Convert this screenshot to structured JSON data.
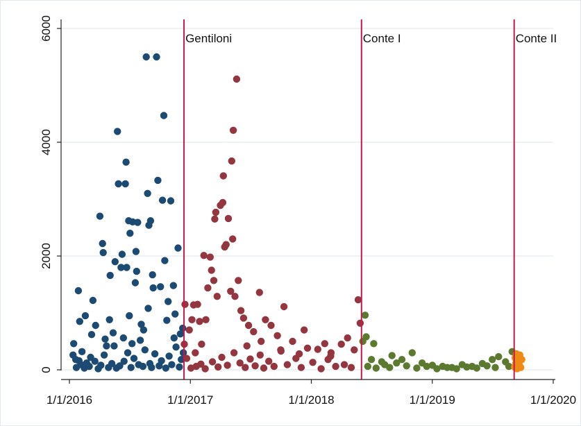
{
  "chart_data": {
    "type": "scatter",
    "title": "",
    "xlabel": "",
    "ylabel": "",
    "xlim": [
      "2016-01-01",
      "2020-01-01"
    ],
    "ylim": [
      0,
      6000
    ],
    "x_ticks": [
      "1/1/2016",
      "1/1/2017",
      "1/1/2018",
      "1/1/2019",
      "1/1/2020"
    ],
    "y_ticks": [
      "0",
      "2000",
      "4000",
      "6000"
    ],
    "y_tick_values": [
      0,
      2000,
      4000,
      6000
    ],
    "grid": "horizontal",
    "colors": {
      "renzi": "#1d4a73",
      "gentiloni": "#93363f",
      "conte1": "#5b7a2f",
      "conte2": "#ef8a12",
      "vline": "#c8174a",
      "grid": "#e8eef2"
    },
    "annotations": [
      {
        "label": "Gentiloni",
        "date": "2016-12-12"
      },
      {
        "label": "Conte I",
        "date": "2018-06-01"
      },
      {
        "label": "Conte II",
        "date": "2019-09-05"
      }
    ],
    "series": [
      {
        "points": [
          [
            "2016-01-12",
            260
          ],
          [
            "2016-01-14",
            460
          ],
          [
            "2016-01-20",
            180
          ],
          [
            "2016-01-28",
            1390
          ],
          [
            "2016-02-01",
            850
          ],
          [
            "2016-02-08",
            320
          ],
          [
            "2016-02-18",
            950
          ],
          [
            "2016-02-22",
            120
          ],
          [
            "2016-03-05",
            220
          ],
          [
            "2016-03-12",
            1220
          ],
          [
            "2016-03-20",
            780
          ],
          [
            "2016-04-02",
            2700
          ],
          [
            "2016-04-10",
            2220
          ],
          [
            "2016-04-12",
            2060
          ],
          [
            "2016-04-22",
            420
          ],
          [
            "2016-05-03",
            1660
          ],
          [
            "2016-05-12",
            650
          ],
          [
            "2016-05-18",
            1900
          ],
          [
            "2016-05-25",
            4190
          ],
          [
            "2016-05-28",
            3270
          ],
          [
            "2016-06-05",
            1800
          ],
          [
            "2016-06-08",
            2030
          ],
          [
            "2016-06-12",
            560
          ],
          [
            "2016-06-18",
            3270
          ],
          [
            "2016-06-20",
            3650
          ],
          [
            "2016-06-22",
            1800
          ],
          [
            "2016-06-28",
            2620
          ],
          [
            "2016-07-02",
            2400
          ],
          [
            "2016-07-10",
            2600
          ],
          [
            "2016-07-18",
            1530
          ],
          [
            "2016-07-20",
            2080
          ],
          [
            "2016-07-22",
            1730
          ],
          [
            "2016-07-25",
            2590
          ],
          [
            "2016-08-05",
            800
          ],
          [
            "2016-08-20",
            5500
          ],
          [
            "2016-08-24",
            3100
          ],
          [
            "2016-08-26",
            1080
          ],
          [
            "2016-08-28",
            2540
          ],
          [
            "2016-09-02",
            2620
          ],
          [
            "2016-09-08",
            1670
          ],
          [
            "2016-09-10",
            1440
          ],
          [
            "2016-09-20",
            5500
          ],
          [
            "2016-09-24",
            3330
          ],
          [
            "2016-10-02",
            1460
          ],
          [
            "2016-10-08",
            2980
          ],
          [
            "2016-10-12",
            4470
          ],
          [
            "2016-10-15",
            1920
          ],
          [
            "2016-10-25",
            1200
          ],
          [
            "2016-11-02",
            2970
          ],
          [
            "2016-11-10",
            1480
          ],
          [
            "2016-11-15",
            980
          ],
          [
            "2016-11-24",
            2140
          ],
          [
            "2016-12-01",
            630
          ],
          [
            "2016-12-08",
            730
          ],
          [
            "2016-01-22",
            40
          ],
          [
            "2016-02-05",
            90
          ],
          [
            "2016-02-15",
            30
          ],
          [
            "2016-03-01",
            60
          ],
          [
            "2016-03-18",
            150
          ],
          [
            "2016-03-28",
            20
          ],
          [
            "2016-04-05",
            80
          ],
          [
            "2016-04-15",
            260
          ],
          [
            "2016-04-28",
            40
          ],
          [
            "2016-05-08",
            110
          ],
          [
            "2016-05-15",
            420
          ],
          [
            "2016-05-22",
            30
          ],
          [
            "2016-06-01",
            70
          ],
          [
            "2016-06-14",
            150
          ],
          [
            "2016-06-25",
            300
          ],
          [
            "2016-07-05",
            40
          ],
          [
            "2016-07-14",
            200
          ],
          [
            "2016-07-28",
            90
          ],
          [
            "2016-08-02",
            520
          ],
          [
            "2016-08-10",
            60
          ],
          [
            "2016-08-16",
            350
          ],
          [
            "2016-08-31",
            110
          ],
          [
            "2016-09-05",
            40
          ],
          [
            "2016-09-15",
            280
          ],
          [
            "2016-09-28",
            70
          ],
          [
            "2016-10-05",
            160
          ],
          [
            "2016-10-18",
            30
          ],
          [
            "2016-10-28",
            240
          ],
          [
            "2016-11-05",
            90
          ],
          [
            "2016-11-18",
            400
          ],
          [
            "2016-11-28",
            50
          ],
          [
            "2016-12-04",
            180
          ],
          [
            "2016-03-08",
            620
          ],
          [
            "2016-05-01",
            880
          ],
          [
            "2016-06-30",
            950
          ],
          [
            "2016-08-12",
            700
          ],
          [
            "2016-10-21",
            870
          ],
          [
            "2016-11-12",
            560
          ],
          [
            "2016-12-10",
            300
          ],
          [
            "2016-01-30",
            160
          ],
          [
            "2016-04-18",
            540
          ],
          [
            "2016-07-08",
            460
          ]
        ]
      },
      {
        "points": [
          [
            "2016-12-13",
            450
          ],
          [
            "2016-12-15",
            1150
          ],
          [
            "2016-12-20",
            200
          ],
          [
            "2016-12-28",
            700
          ],
          [
            "2017-01-05",
            880
          ],
          [
            "2017-01-10",
            1140
          ],
          [
            "2017-01-15",
            300
          ],
          [
            "2017-01-22",
            1150
          ],
          [
            "2017-01-28",
            850
          ],
          [
            "2017-02-03",
            450
          ],
          [
            "2017-02-10",
            2010
          ],
          [
            "2017-02-16",
            880
          ],
          [
            "2017-02-22",
            1440
          ],
          [
            "2017-03-01",
            1980
          ],
          [
            "2017-03-05",
            1750
          ],
          [
            "2017-03-12",
            1570
          ],
          [
            "2017-03-15",
            2650
          ],
          [
            "2017-03-18",
            2770
          ],
          [
            "2017-03-22",
            1290
          ],
          [
            "2017-04-01",
            2890
          ],
          [
            "2017-04-08",
            2940
          ],
          [
            "2017-04-10",
            3410
          ],
          [
            "2017-04-14",
            2160
          ],
          [
            "2017-04-18",
            2200
          ],
          [
            "2017-04-25",
            2660
          ],
          [
            "2017-05-02",
            1380
          ],
          [
            "2017-05-05",
            3670
          ],
          [
            "2017-05-08",
            2300
          ],
          [
            "2017-05-10",
            4210
          ],
          [
            "2017-05-15",
            1290
          ],
          [
            "2017-05-20",
            5110
          ],
          [
            "2017-05-25",
            1570
          ],
          [
            "2017-06-02",
            1040
          ],
          [
            "2017-06-10",
            910
          ],
          [
            "2017-06-25",
            780
          ],
          [
            "2017-07-10",
            670
          ],
          [
            "2017-07-28",
            1360
          ],
          [
            "2017-08-15",
            880
          ],
          [
            "2017-09-01",
            780
          ],
          [
            "2017-09-20",
            600
          ],
          [
            "2017-10-10",
            1110
          ],
          [
            "2017-11-05",
            500
          ],
          [
            "2017-12-10",
            700
          ],
          [
            "2017-12-20",
            380
          ],
          [
            "2018-01-20",
            360
          ],
          [
            "2018-02-10",
            460
          ],
          [
            "2018-03-01",
            300
          ],
          [
            "2018-04-01",
            450
          ],
          [
            "2018-04-20",
            560
          ],
          [
            "2018-05-10",
            350
          ],
          [
            "2018-05-22",
            1230
          ],
          [
            "2018-05-28",
            820
          ],
          [
            "2017-01-02",
            30
          ],
          [
            "2017-01-18",
            60
          ],
          [
            "2017-02-01",
            100
          ],
          [
            "2017-02-14",
            20
          ],
          [
            "2017-03-08",
            140
          ],
          [
            "2017-03-25",
            50
          ],
          [
            "2017-04-05",
            220
          ],
          [
            "2017-04-22",
            80
          ],
          [
            "2017-05-12",
            300
          ],
          [
            "2017-05-30",
            120
          ],
          [
            "2017-06-15",
            40
          ],
          [
            "2017-06-30",
            190
          ],
          [
            "2017-07-15",
            70
          ],
          [
            "2017-07-30",
            260
          ],
          [
            "2017-08-10",
            30
          ],
          [
            "2017-08-25",
            150
          ],
          [
            "2017-09-10",
            60
          ],
          [
            "2017-09-30",
            350
          ],
          [
            "2017-10-20",
            90
          ],
          [
            "2017-11-15",
            200
          ],
          [
            "2017-12-01",
            40
          ],
          [
            "2018-01-05",
            130
          ],
          [
            "2018-01-30",
            20
          ],
          [
            "2018-02-20",
            180
          ],
          [
            "2018-03-15",
            60
          ],
          [
            "2018-04-10",
            90
          ],
          [
            "2018-05-01",
            40
          ],
          [
            "2017-06-20",
            420
          ],
          [
            "2017-08-02",
            500
          ],
          [
            "2017-10-01",
            330
          ],
          [
            "2017-11-25",
            280
          ],
          [
            "2018-02-28",
            240
          ]
        ]
      },
      {
        "points": [
          [
            "2018-06-05",
            500
          ],
          [
            "2018-06-12",
            960
          ],
          [
            "2018-06-15",
            580
          ],
          [
            "2018-07-08",
            460
          ],
          [
            "2018-08-01",
            140
          ],
          [
            "2018-09-01",
            250
          ],
          [
            "2018-10-01",
            180
          ],
          [
            "2018-11-01",
            300
          ],
          [
            "2018-12-01",
            120
          ],
          [
            "2019-01-01",
            80
          ],
          [
            "2019-02-01",
            60
          ],
          [
            "2019-03-01",
            40
          ],
          [
            "2019-04-01",
            90
          ],
          [
            "2019-05-01",
            60
          ],
          [
            "2019-06-01",
            110
          ],
          [
            "2019-07-01",
            180
          ],
          [
            "2019-07-20",
            230
          ],
          [
            "2019-08-10",
            140
          ],
          [
            "2019-08-30",
            320
          ],
          [
            "2018-06-20",
            60
          ],
          [
            "2018-07-01",
            180
          ],
          [
            "2018-07-15",
            30
          ],
          [
            "2018-08-10",
            90
          ],
          [
            "2018-08-25",
            40
          ],
          [
            "2018-09-15",
            120
          ],
          [
            "2018-10-15",
            70
          ],
          [
            "2018-11-15",
            30
          ],
          [
            "2018-12-15",
            60
          ],
          [
            "2019-01-15",
            20
          ],
          [
            "2019-02-15",
            40
          ],
          [
            "2019-03-15",
            20
          ],
          [
            "2019-04-15",
            50
          ],
          [
            "2019-05-15",
            30
          ],
          [
            "2019-06-15",
            70
          ],
          [
            "2019-07-10",
            40
          ],
          [
            "2019-08-20",
            60
          ]
        ]
      },
      {
        "points": [
          [
            "2019-09-06",
            50
          ],
          [
            "2019-09-08",
            210
          ],
          [
            "2019-09-10",
            120
          ],
          [
            "2019-09-12",
            280
          ],
          [
            "2019-09-14",
            20
          ],
          [
            "2019-09-17",
            150
          ],
          [
            "2019-09-20",
            90
          ],
          [
            "2019-09-22",
            260
          ],
          [
            "2019-09-25",
            40
          ],
          [
            "2019-09-28",
            180
          ]
        ]
      }
    ]
  }
}
